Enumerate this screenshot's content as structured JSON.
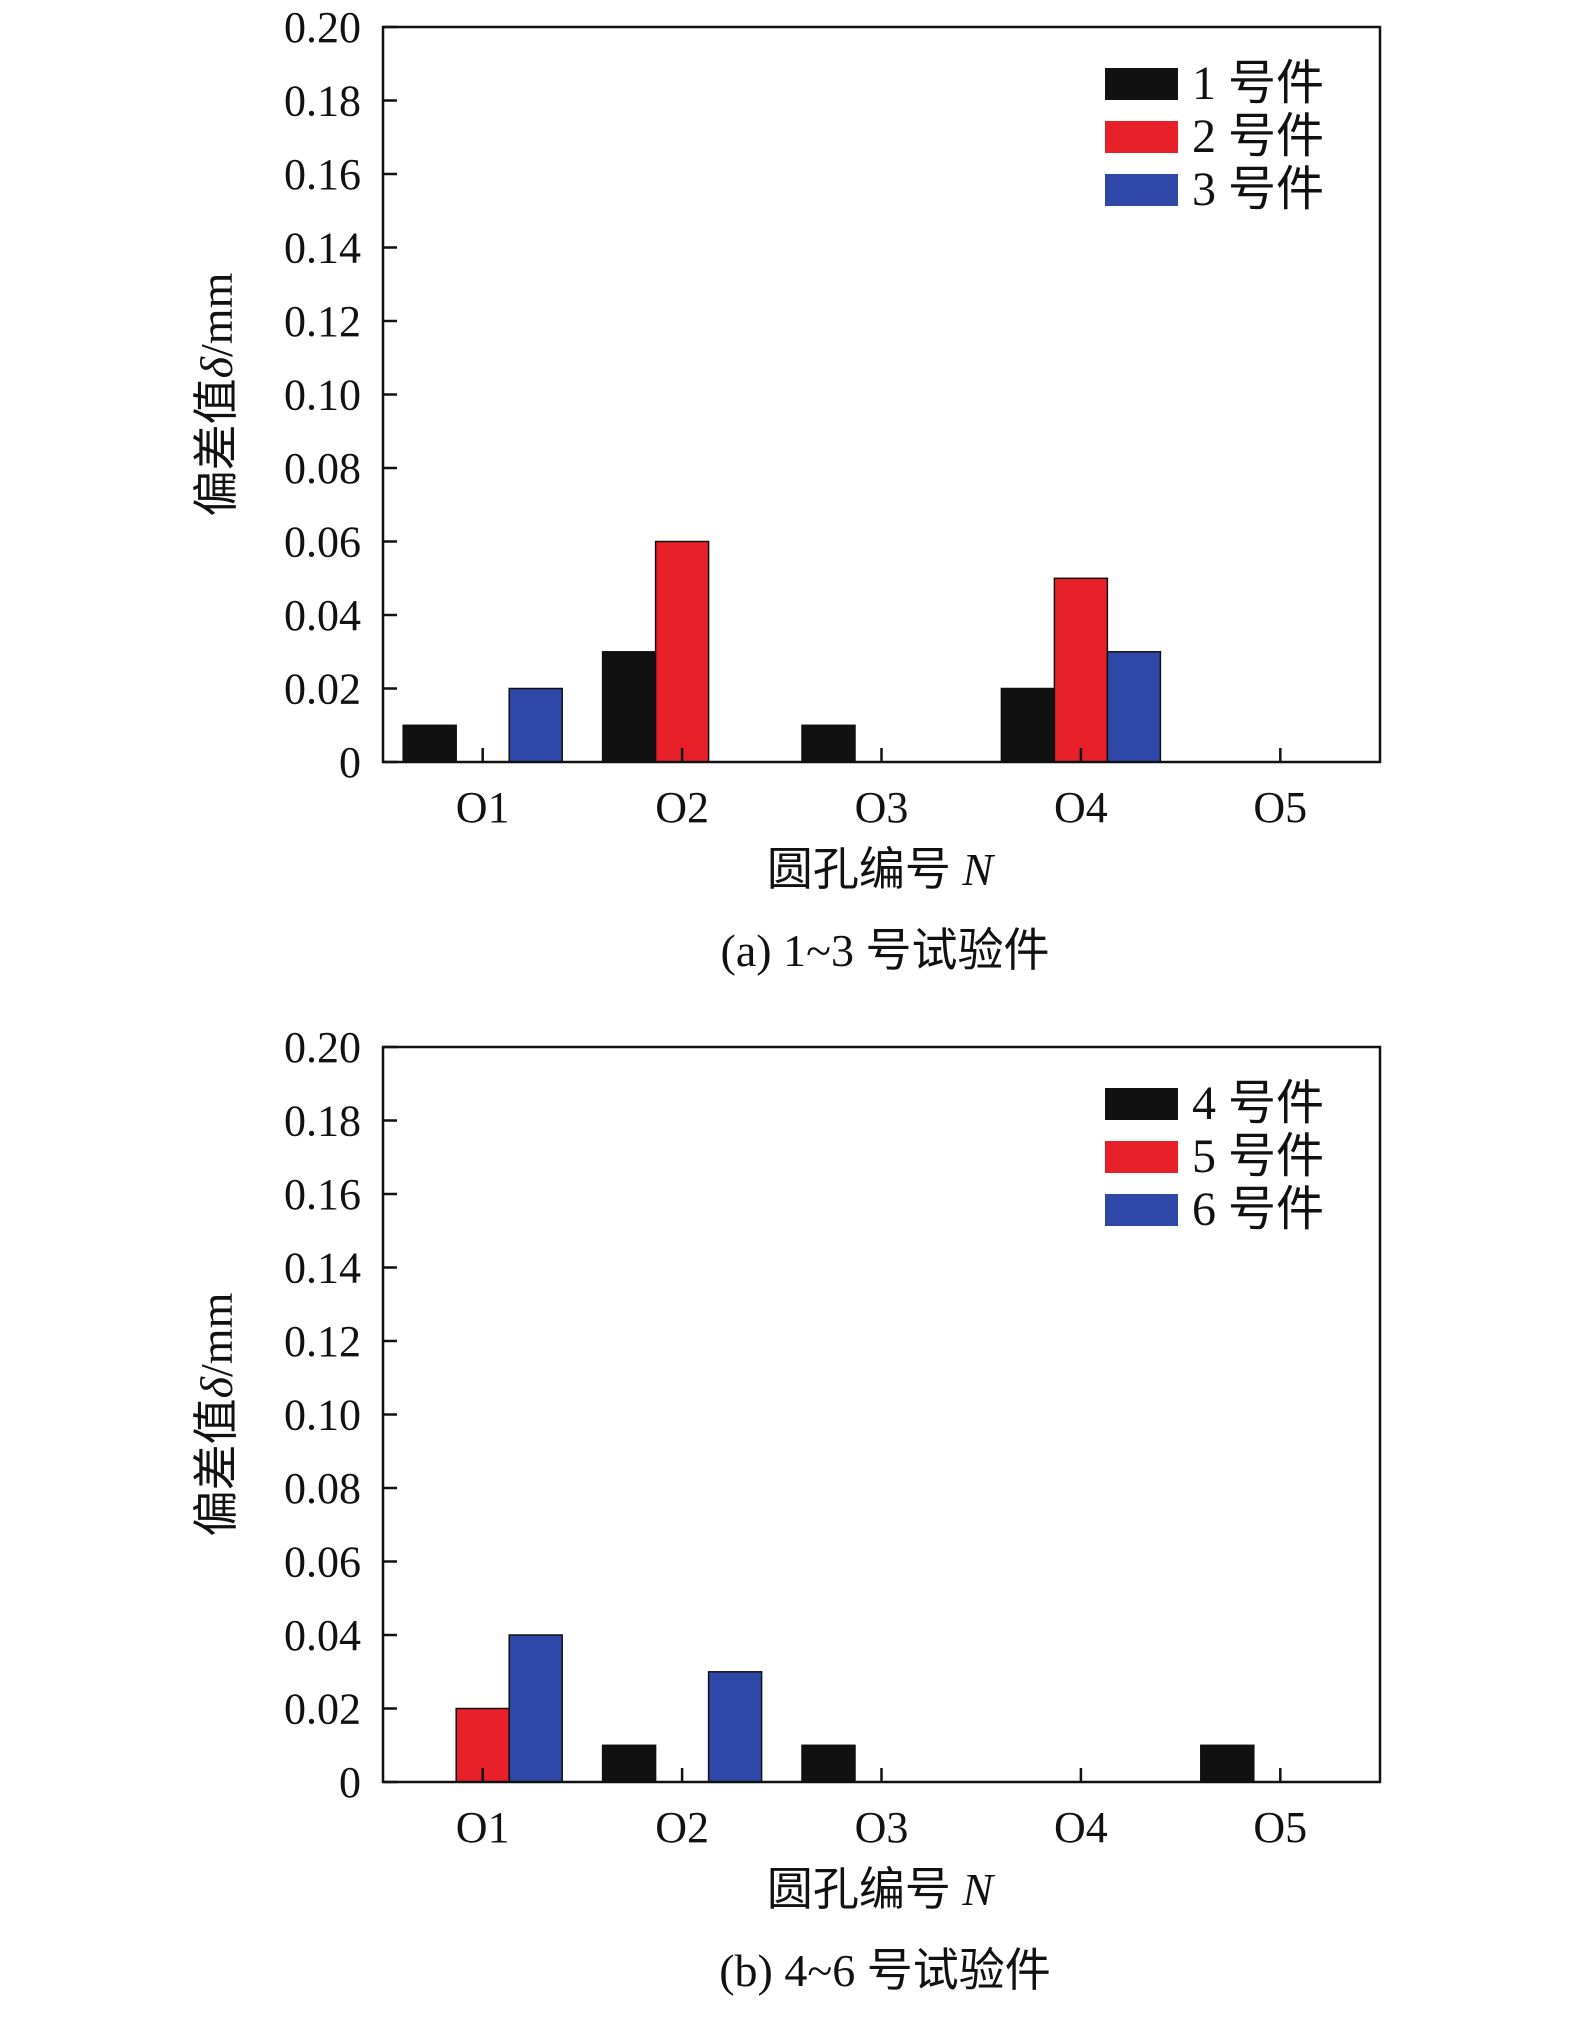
{
  "chart_data": [
    {
      "type": "bar",
      "categories": [
        "O1",
        "O2",
        "O3",
        "O4",
        "O5"
      ],
      "series": [
        {
          "name": "1 号件",
          "color": "#111111",
          "values": [
            0.01,
            0.03,
            0.01,
            0.02,
            0
          ]
        },
        {
          "name": "2 号件",
          "color": "#e8202a",
          "values": [
            0,
            0.06,
            0,
            0.05,
            0
          ]
        },
        {
          "name": "3 号件",
          "color": "#2f48a8",
          "values": [
            0.02,
            0,
            0,
            0.03,
            0
          ]
        }
      ],
      "xlabel_text": "圆孔编号 ",
      "xlabel_var": "N",
      "ylabel_text": "偏差值",
      "ylabel_var": "δ",
      "ylabel_unit": "/mm",
      "ylim": [
        0,
        0.2
      ],
      "yticks": [
        "0",
        "0.02",
        "0.04",
        "0.06",
        "0.08",
        "0.10",
        "0.12",
        "0.14",
        "0.16",
        "0.18",
        "0.20"
      ],
      "caption": "(a) 1~3 号试验件",
      "legend_position": "top-right",
      "grid": false
    },
    {
      "type": "bar",
      "categories": [
        "O1",
        "O2",
        "O3",
        "O4",
        "O5"
      ],
      "series": [
        {
          "name": "4 号件",
          "color": "#111111",
          "values": [
            0,
            0.01,
            0.01,
            0,
            0.01
          ]
        },
        {
          "name": "5 号件",
          "color": "#e8202a",
          "values": [
            0.02,
            0,
            0,
            0,
            0
          ]
        },
        {
          "name": "6 号件",
          "color": "#2f48a8",
          "values": [
            0.04,
            0.03,
            0,
            0,
            0
          ]
        }
      ],
      "xlabel_text": "圆孔编号 ",
      "xlabel_var": "N",
      "ylabel_text": "偏差值",
      "ylabel_var": "δ",
      "ylabel_unit": "/mm",
      "ylim": [
        0,
        0.2
      ],
      "yticks": [
        "0",
        "0.02",
        "0.04",
        "0.06",
        "0.08",
        "0.10",
        "0.12",
        "0.14",
        "0.16",
        "0.18",
        "0.20"
      ],
      "caption": "(b) 4~6 号试验件",
      "legend_position": "top-right",
      "grid": false
    }
  ]
}
